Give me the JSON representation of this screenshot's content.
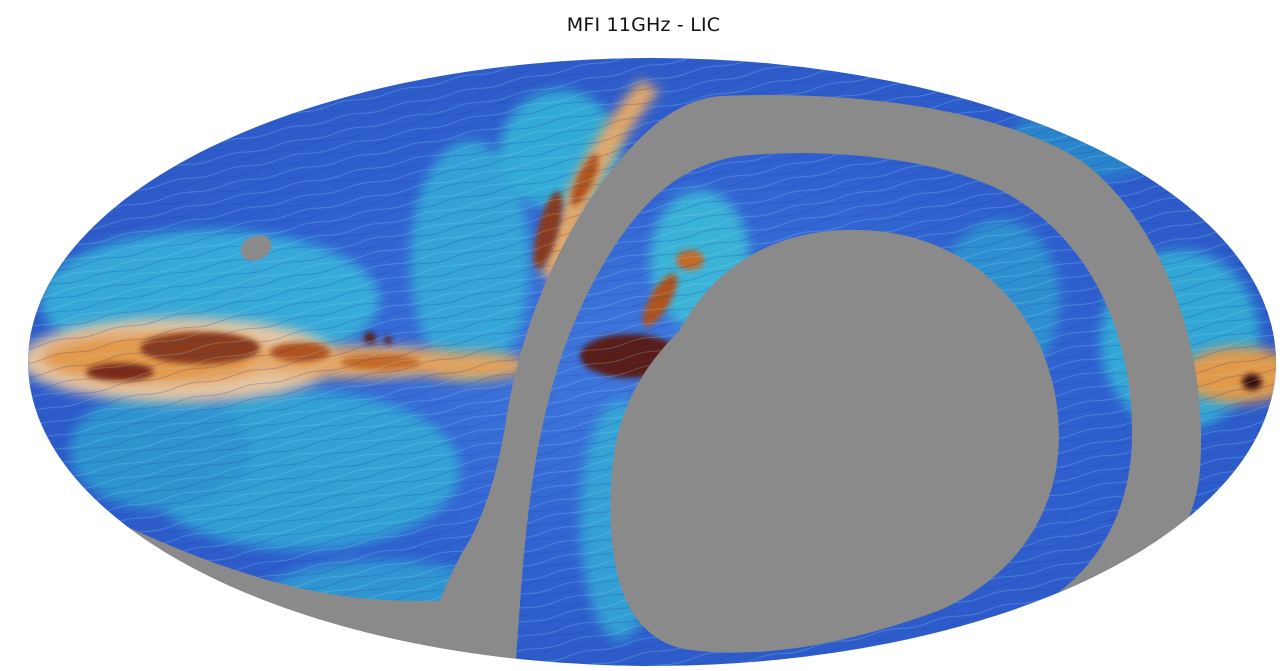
{
  "figure": {
    "title": "MFI 11GHz - LIC"
  },
  "colors": {
    "background": "#ffffff",
    "mask_gray": "#8a8a8a",
    "low_intensity_blue": "#2f5fcf",
    "mid_intensity_cyan": "#36c4d8",
    "high_intensity_orange": "#e2892e",
    "peak_intensity_maroon": "#5a1a14"
  },
  "projection": "mollweide"
}
